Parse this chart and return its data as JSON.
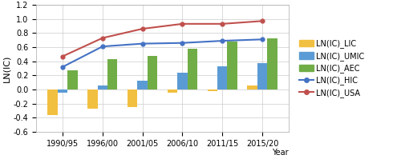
{
  "categories": [
    "1990/95",
    "1996/00",
    "2001/05",
    "2006/10",
    "2011/15",
    "2015/20"
  ],
  "LIC": [
    -0.36,
    -0.27,
    -0.25,
    -0.04,
    -0.02,
    0.06
  ],
  "UMIC": [
    -0.04,
    0.06,
    0.13,
    0.24,
    0.33,
    0.37
  ],
  "AEC": [
    0.27,
    0.43,
    0.48,
    0.58,
    0.68,
    0.73
  ],
  "HIC": [
    0.32,
    0.61,
    0.65,
    0.66,
    0.69,
    0.71
  ],
  "USA": [
    0.47,
    0.73,
    0.86,
    0.93,
    0.93,
    0.97
  ],
  "color_LIC": "#F2C040",
  "color_UMIC": "#5B9BD5",
  "color_AEC": "#70AD47",
  "color_HIC": "#4472C4",
  "color_USA": "#C0504D",
  "ylabel": "LN(IC)",
  "xlabel": "Year",
  "ylim": [
    -0.6,
    1.2
  ],
  "yticks": [
    -0.6,
    -0.4,
    -0.2,
    0.0,
    0.2,
    0.4,
    0.6,
    0.8,
    1.0,
    1.2
  ],
  "legend_labels": [
    "LN(IC)_LIC",
    "LN(IC)_UMIC",
    "LN(IC)_AEC",
    "LN(IC)_HIC",
    "LN(IC)_USA"
  ],
  "bar_width": 0.25
}
